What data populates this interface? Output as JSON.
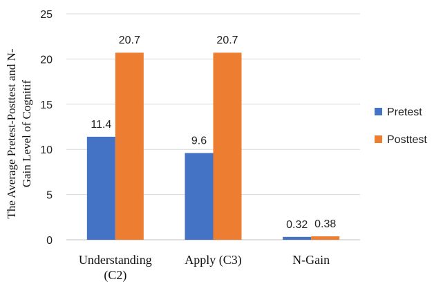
{
  "chart_data": {
    "type": "bar",
    "categories": [
      "Understanding (C2)",
      "Apply (C3)",
      "N-Gain"
    ],
    "category_lines": [
      [
        "Understanding",
        "(C2)"
      ],
      [
        "Apply (C3)"
      ],
      [
        "N-Gain"
      ]
    ],
    "series": [
      {
        "name": "Pretest",
        "values": [
          11.4,
          9.6,
          0.32
        ],
        "labels": [
          "11.4",
          "9.6",
          "0.32"
        ],
        "color": "#4472C4"
      },
      {
        "name": "Posttest",
        "values": [
          20.7,
          20.7,
          0.38
        ],
        "labels": [
          "20.7",
          "20.7",
          "0.38"
        ],
        "color": "#ED7D31"
      }
    ],
    "ylabel_lines": [
      "The Average Pretest-Posttest and N-",
      "Gain Level of Cognitif"
    ],
    "ylim": [
      0,
      25
    ],
    "yticks": [
      0,
      5,
      10,
      15,
      20,
      25
    ],
    "grid": true,
    "legend": "right"
  }
}
